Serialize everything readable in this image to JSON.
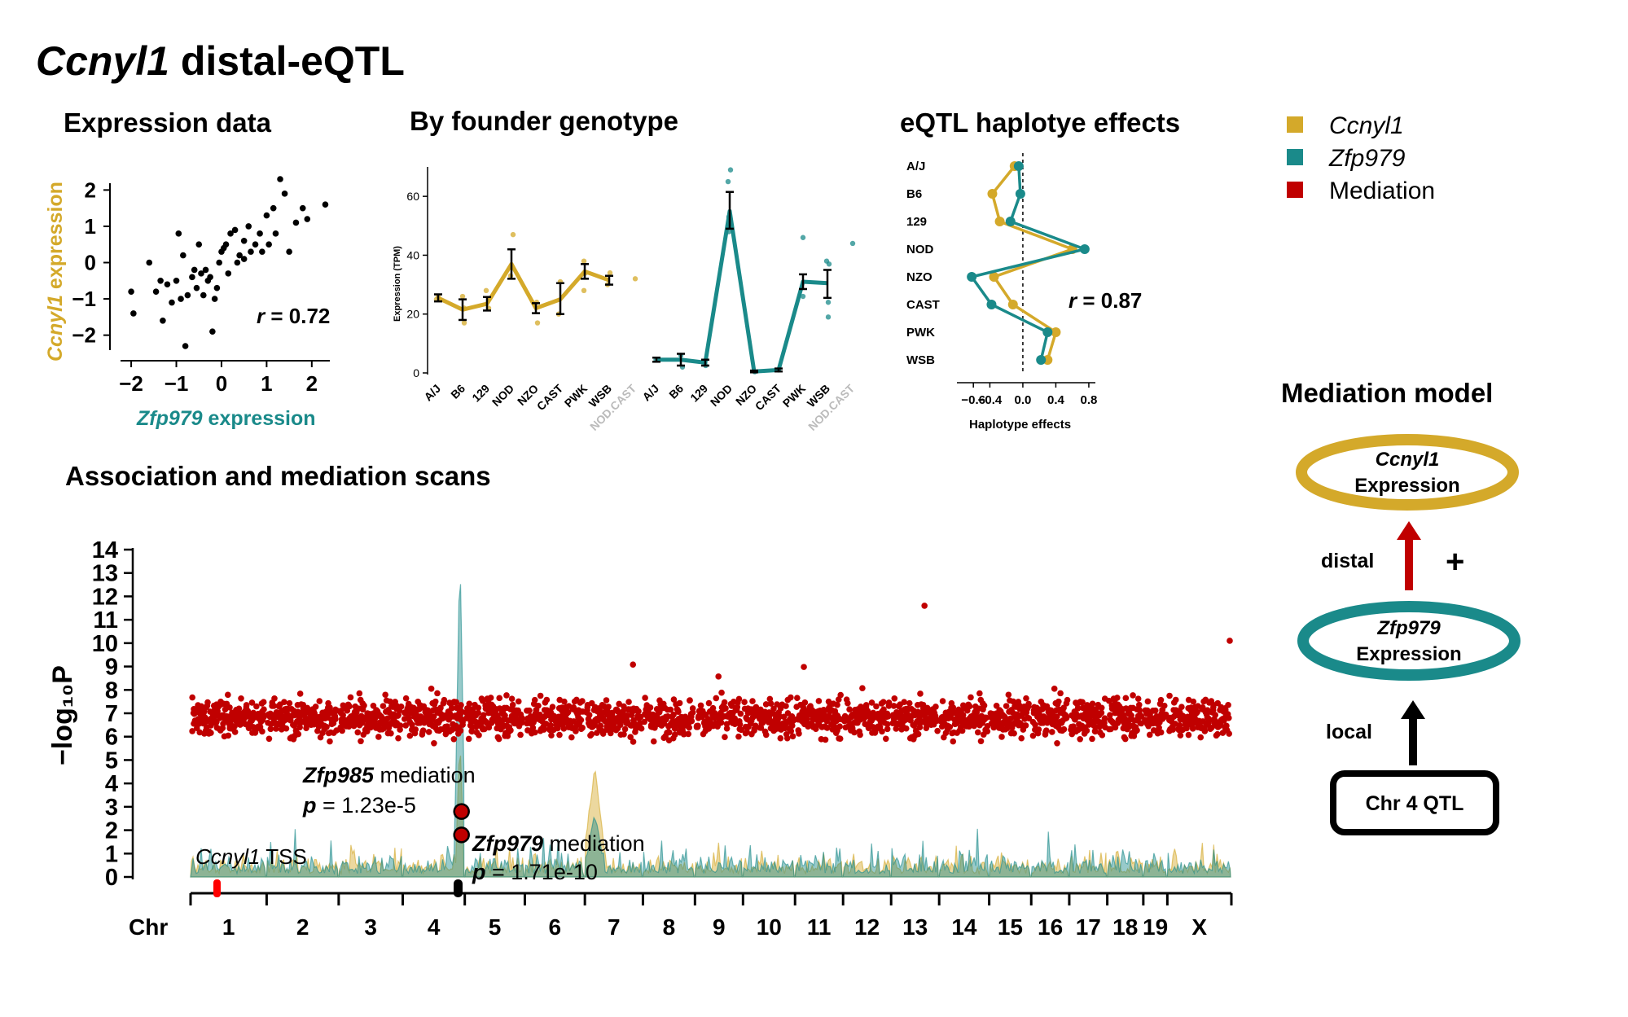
{
  "figure": {
    "title_gene": "Ccnyl1",
    "title_rest": " distal-eQTL"
  },
  "legend": [
    {
      "label": "Ccnyl1",
      "color": "#d4a92a",
      "italic": true
    },
    {
      "label": "Zfp979",
      "color": "#1a8a8a",
      "italic": true
    },
    {
      "label": "Mediation",
      "color": "#c00000",
      "italic": false
    }
  ],
  "colors": {
    "gold": "#d4a92a",
    "teal": "#1a8a8a",
    "red": "#c00000",
    "grey": "#bbbbbb"
  },
  "chart_data": [
    {
      "type": "scatter",
      "title": "Expression data",
      "xlabel_gene": "Zfp979",
      "xlabel_rest": " expression",
      "ylabel_gene": "Ccnyl1",
      "ylabel_rest": " expression",
      "xlim": [
        -2.2,
        2.4
      ],
      "ylim": [
        -2.3,
        2.3
      ],
      "xticks": [
        -2,
        -1,
        0,
        1,
        2
      ],
      "yticks": [
        -2,
        -1,
        0,
        1,
        2
      ],
      "annotation": "r = 0.72",
      "annotation_r": "r",
      "annotation_val": " = 0.72",
      "points": [
        [
          -2.0,
          -0.8
        ],
        [
          -1.95,
          -1.4
        ],
        [
          -1.6,
          0.0
        ],
        [
          -1.45,
          -0.8
        ],
        [
          -1.35,
          -0.5
        ],
        [
          -1.3,
          -1.6
        ],
        [
          -1.2,
          -0.6
        ],
        [
          -1.1,
          -1.1
        ],
        [
          -1.0,
          -0.5
        ],
        [
          -0.95,
          0.8
        ],
        [
          -0.9,
          -1.0
        ],
        [
          -0.85,
          0.2
        ],
        [
          -0.8,
          -2.3
        ],
        [
          -0.75,
          -0.9
        ],
        [
          -0.65,
          -0.4
        ],
        [
          -0.6,
          -0.2
        ],
        [
          -0.55,
          -0.7
        ],
        [
          -0.5,
          0.5
        ],
        [
          -0.45,
          -0.3
        ],
        [
          -0.4,
          -0.9
        ],
        [
          -0.35,
          -0.2
        ],
        [
          -0.3,
          -0.5
        ],
        [
          -0.25,
          -0.4
        ],
        [
          -0.2,
          -1.9
        ],
        [
          -0.15,
          -1.0
        ],
        [
          -0.1,
          -0.7
        ],
        [
          -0.05,
          0.0
        ],
        [
          0.0,
          0.3
        ],
        [
          0.05,
          0.4
        ],
        [
          0.1,
          0.5
        ],
        [
          0.15,
          -0.3
        ],
        [
          0.2,
          0.8
        ],
        [
          0.3,
          0.9
        ],
        [
          0.35,
          0.0
        ],
        [
          0.4,
          0.2
        ],
        [
          0.5,
          0.1
        ],
        [
          0.5,
          0.6
        ],
        [
          0.6,
          1.0
        ],
        [
          0.65,
          0.3
        ],
        [
          0.75,
          0.5
        ],
        [
          0.85,
          0.8
        ],
        [
          0.9,
          0.3
        ],
        [
          1.0,
          1.3
        ],
        [
          1.05,
          0.5
        ],
        [
          1.15,
          1.5
        ],
        [
          1.2,
          0.8
        ],
        [
          1.3,
          2.3
        ],
        [
          1.4,
          1.9
        ],
        [
          1.5,
          0.3
        ],
        [
          1.65,
          1.1
        ],
        [
          1.8,
          1.5
        ],
        [
          1.9,
          1.2
        ],
        [
          2.3,
          1.6
        ]
      ]
    },
    {
      "type": "line",
      "title": "By founder genotype",
      "ylabel": "Expression (TPM)",
      "ylim": [
        0,
        70
      ],
      "yticks": [
        0,
        20,
        40,
        60
      ],
      "categories": [
        "A/J",
        "B6",
        "129",
        "NOD",
        "NZO",
        "CAST",
        "PWK",
        "WSB",
        "NOD.CAST"
      ],
      "series": [
        {
          "name": "Ccnyl1",
          "color": "#d4a92a",
          "means": [
            25.5,
            21.5,
            23.5,
            37,
            22,
            25,
            34.5,
            31.5
          ],
          "lower": [
            24.3,
            18.0,
            21.2,
            32.0,
            20.3,
            20.0,
            32.0,
            30.0
          ],
          "upper": [
            26.7,
            25.0,
            25.8,
            42.0,
            23.7,
            30.5,
            37.0,
            33.0
          ],
          "points": [
            [
              0,
              25
            ],
            [
              0,
              26
            ],
            [
              1,
              17
            ],
            [
              1,
              22
            ],
            [
              1,
              26
            ],
            [
              2,
              22
            ],
            [
              2,
              28
            ],
            [
              3,
              47
            ],
            [
              3,
              33
            ],
            [
              3,
              36
            ],
            [
              4,
              17
            ],
            [
              4,
              24
            ],
            [
              5,
              20
            ],
            [
              5,
              31
            ],
            [
              6,
              28
            ],
            [
              6,
              34
            ],
            [
              6,
              38
            ],
            [
              7,
              30
            ],
            [
              7,
              34
            ],
            [
              8,
              32
            ]
          ]
        },
        {
          "name": "Zfp979",
          "color": "#1a8a8a",
          "means": [
            4.5,
            4.5,
            3.5,
            55,
            0.5,
            1,
            31,
            30.5
          ],
          "lower": [
            3.8,
            2.5,
            2.5,
            49,
            0.2,
            0.5,
            28.5,
            25.5
          ],
          "upper": [
            5.2,
            6.5,
            4.5,
            61.5,
            0.8,
            1.5,
            33.5,
            35.0
          ],
          "points": [
            [
              0,
              4.5
            ],
            [
              1,
              2
            ],
            [
              1,
              6
            ],
            [
              2,
              2.5
            ],
            [
              3,
              48
            ],
            [
              3,
              65
            ],
            [
              3,
              69
            ],
            [
              3,
              53
            ],
            [
              4,
              0.4
            ],
            [
              5,
              1
            ],
            [
              6,
              26
            ],
            [
              6,
              46
            ],
            [
              7,
              19
            ],
            [
              7,
              24
            ],
            [
              7,
              37
            ],
            [
              7,
              38
            ],
            [
              8,
              44
            ]
          ]
        }
      ]
    },
    {
      "type": "line",
      "title": "eQTL haplotye effects",
      "xlabel": "Haplotype effects",
      "xlim": [
        -0.75,
        0.85
      ],
      "xticks": [
        "-0.6",
        "-0.4",
        "0.0",
        "0.4",
        "0.8"
      ],
      "xtick_values": [
        -0.6,
        -0.4,
        0.0,
        0.4,
        0.8
      ],
      "categories": [
        "A/J",
        "B6",
        "129",
        "NOD",
        "NZO",
        "CAST",
        "PWK",
        "WSB"
      ],
      "annotation": "r = 0.87",
      "annotation_r": "r",
      "annotation_val": " = 0.87",
      "series": [
        {
          "name": "Ccnyl1",
          "color": "#d4a92a",
          "values": [
            -0.1,
            -0.37,
            -0.28,
            0.6,
            -0.35,
            -0.12,
            0.4,
            0.3
          ]
        },
        {
          "name": "Zfp979",
          "color": "#1a8a8a",
          "values": [
            -0.05,
            -0.03,
            -0.15,
            0.75,
            -0.62,
            -0.38,
            0.3,
            0.22
          ]
        }
      ]
    },
    {
      "type": "scatter",
      "title": "Association and mediation scans",
      "ylabel": "−log₁₀P",
      "ylim": [
        0,
        14
      ],
      "yticks": [
        0,
        1,
        2,
        3,
        4,
        5,
        6,
        7,
        8,
        9,
        10,
        11,
        12,
        13,
        14
      ],
      "chromosomes": [
        "1",
        "2",
        "3",
        "4",
        "5",
        "6",
        "7",
        "8",
        "9",
        "10",
        "11",
        "12",
        "13",
        "14",
        "15",
        "16",
        "17",
        "18",
        "19",
        "X"
      ],
      "chr_label": "Chr",
      "mediation_baseline_mean": 6.8,
      "mediation_range": [
        4.5,
        11.6
      ],
      "zfp979_peak": {
        "chr": "4",
        "value": 13.6
      },
      "ccnyl1_peak": {
        "chr": "7",
        "value": 4.5
      },
      "annotations": [
        {
          "gene": "Zfp985",
          "text": " mediation",
          "p_label": "p",
          "p_value": " = 1.23e-5",
          "value": 2.8
        },
        {
          "gene": "Zfp979",
          "text": " mediation",
          "p_label": "p",
          "p_value": " = 1.71e-10",
          "value": 1.8
        }
      ],
      "tss_label_gene": "Ccnyl1",
      "tss_label_rest": " TSS"
    }
  ],
  "mediation_model": {
    "title": "Mediation model",
    "top_gene": "Ccnyl1",
    "top_sub": "Expression",
    "mid_gene": "Zfp979",
    "mid_sub": "Expression",
    "bottom": "Chr 4 QTL",
    "upper_arrow_label": "distal",
    "lower_arrow_label": "local",
    "sign": "+"
  }
}
